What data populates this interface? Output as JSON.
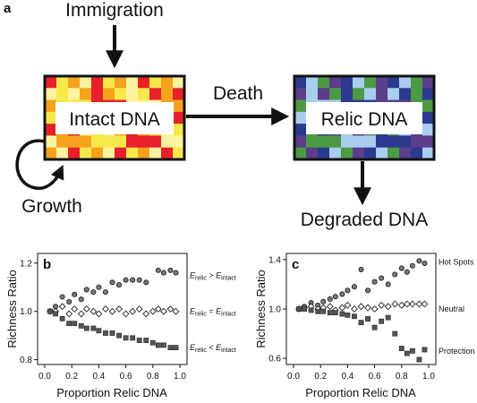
{
  "figure": {
    "panel_a": {
      "letter": "a",
      "immigration": "Immigration",
      "intact_box": "Intact DNA",
      "death": "Death",
      "relic_box": "Relic DNA",
      "growth": "Growth",
      "degraded": "Degraded DNA",
      "colors": {
        "intact_grid": [
          "#e8202a",
          "#f9e84a",
          "#f6a21e",
          "#fef3a0"
        ],
        "relic_grid": [
          "#2b3a8f",
          "#a9cdef",
          "#4d9a44",
          "#5b3d8a"
        ]
      }
    }
  },
  "chart_data": [
    {
      "type": "scatter",
      "panel": "b",
      "xlabel": "Proportion Relic DNA",
      "ylabel": "Richness Ratio",
      "xlim": [
        0.0,
        1.0
      ],
      "ylim": [
        0.78,
        1.24
      ],
      "xticks": [
        "0.0",
        "0.2",
        "0.4",
        "0.6",
        "0.8",
        "1.0"
      ],
      "yticks": [
        "0.8",
        "1.0",
        "1.2"
      ],
      "xtick_values": [
        0.0,
        0.2,
        0.4,
        0.6,
        0.8,
        1.0
      ],
      "ytick_values": [
        0.8,
        1.0,
        1.2
      ],
      "annotations": [
        {
          "main": "E",
          "sub1": "relic",
          "op": " > ",
          "main2": "E",
          "sub2": "intact",
          "y": 1.15
        },
        {
          "main": "E",
          "sub1": "relic",
          "op": " = ",
          "main2": "E",
          "sub2": "intact",
          "y": 1.0
        },
        {
          "main": "E",
          "sub1": "relic",
          "op": " < ",
          "main2": "E",
          "sub2": "intact",
          "y": 0.85
        }
      ],
      "series": [
        {
          "marker": "circle",
          "x": [
            0.04,
            0.08,
            0.13,
            0.18,
            0.22,
            0.27,
            0.31,
            0.36,
            0.4,
            0.45,
            0.5,
            0.55,
            0.6,
            0.65,
            0.7,
            0.75,
            0.84,
            0.88,
            0.93,
            0.97
          ],
          "y": [
            1.0,
            1.02,
            1.06,
            1.04,
            1.07,
            1.05,
            1.09,
            1.08,
            1.1,
            1.08,
            1.12,
            1.11,
            1.13,
            1.13,
            1.13,
            1.12,
            1.17,
            1.16,
            1.17,
            1.16
          ]
        },
        {
          "marker": "diamond",
          "x": [
            0.04,
            0.08,
            0.13,
            0.18,
            0.22,
            0.27,
            0.31,
            0.36,
            0.4,
            0.45,
            0.5,
            0.55,
            0.6,
            0.65,
            0.7,
            0.75,
            0.8,
            0.84,
            0.88,
            0.93,
            0.97
          ],
          "y": [
            1.0,
            1.0,
            1.02,
            0.99,
            1.01,
            0.99,
            1.01,
            1.0,
            0.99,
            1.01,
            1.0,
            1.01,
            0.99,
            1.0,
            1.01,
            0.99,
            1.0,
            1.01,
            1.0,
            1.01,
            1.0
          ]
        },
        {
          "marker": "square",
          "x": [
            0.04,
            0.08,
            0.13,
            0.18,
            0.22,
            0.27,
            0.31,
            0.36,
            0.4,
            0.45,
            0.5,
            0.55,
            0.6,
            0.65,
            0.7,
            0.75,
            0.8,
            0.84,
            0.88,
            0.93,
            0.97
          ],
          "y": [
            1.0,
            0.99,
            0.97,
            0.95,
            0.95,
            0.94,
            0.93,
            0.93,
            0.92,
            0.91,
            0.91,
            0.9,
            0.89,
            0.89,
            0.88,
            0.88,
            0.87,
            0.86,
            0.86,
            0.85,
            0.85
          ]
        }
      ]
    },
    {
      "type": "scatter",
      "panel": "c",
      "xlabel": "Proportion Relic DNA",
      "ylabel": "Richness Ratio",
      "xlim": [
        0.0,
        1.0
      ],
      "ylim": [
        0.55,
        1.45
      ],
      "xticks": [
        "0.0",
        "0.2",
        "0.4",
        "0.6",
        "0.8",
        "1.0"
      ],
      "yticks": [
        "0.6",
        "1.0",
        "1.4"
      ],
      "xtick_values": [
        0.0,
        0.2,
        0.4,
        0.6,
        0.8,
        1.0
      ],
      "ytick_values": [
        0.6,
        1.0,
        1.4
      ],
      "annotations": [
        {
          "text": "Hot Spots",
          "y": 1.38
        },
        {
          "text": "Neutral",
          "y": 1.0
        },
        {
          "text": "Protection",
          "y": 0.66
        }
      ],
      "series": [
        {
          "marker": "circle",
          "x": [
            0.04,
            0.08,
            0.13,
            0.18,
            0.22,
            0.27,
            0.31,
            0.36,
            0.4,
            0.45,
            0.5,
            0.55,
            0.6,
            0.65,
            0.7,
            0.75,
            0.8,
            0.84,
            0.88,
            0.93,
            0.97
          ],
          "y": [
            1.0,
            1.02,
            1.05,
            1.03,
            1.06,
            1.08,
            1.1,
            1.12,
            1.15,
            1.18,
            1.32,
            1.15,
            1.22,
            1.25,
            1.2,
            1.28,
            1.33,
            1.3,
            1.35,
            1.39,
            1.37
          ]
        },
        {
          "marker": "diamond",
          "x": [
            0.04,
            0.08,
            0.13,
            0.18,
            0.22,
            0.27,
            0.31,
            0.36,
            0.4,
            0.45,
            0.5,
            0.55,
            0.6,
            0.65,
            0.7,
            0.75,
            0.8,
            0.84,
            0.88,
            0.93,
            0.97
          ],
          "y": [
            1.0,
            1.01,
            1.02,
            1.0,
            1.01,
            1.02,
            0.99,
            1.01,
            1.03,
            1.0,
            1.02,
            1.01,
            1.0,
            1.03,
            1.02,
            1.04,
            1.03,
            1.04,
            1.04,
            1.04,
            1.04
          ]
        },
        {
          "marker": "square",
          "x": [
            0.04,
            0.08,
            0.13,
            0.18,
            0.22,
            0.27,
            0.31,
            0.36,
            0.4,
            0.45,
            0.5,
            0.55,
            0.6,
            0.65,
            0.7,
            0.75,
            0.8,
            0.84,
            0.88,
            0.93,
            0.97
          ],
          "y": [
            1.0,
            1.0,
            0.99,
            0.98,
            0.98,
            0.97,
            0.97,
            0.96,
            0.95,
            0.94,
            0.89,
            0.92,
            0.85,
            0.9,
            0.93,
            0.8,
            0.68,
            0.64,
            0.66,
            0.59,
            0.67
          ]
        }
      ]
    }
  ]
}
